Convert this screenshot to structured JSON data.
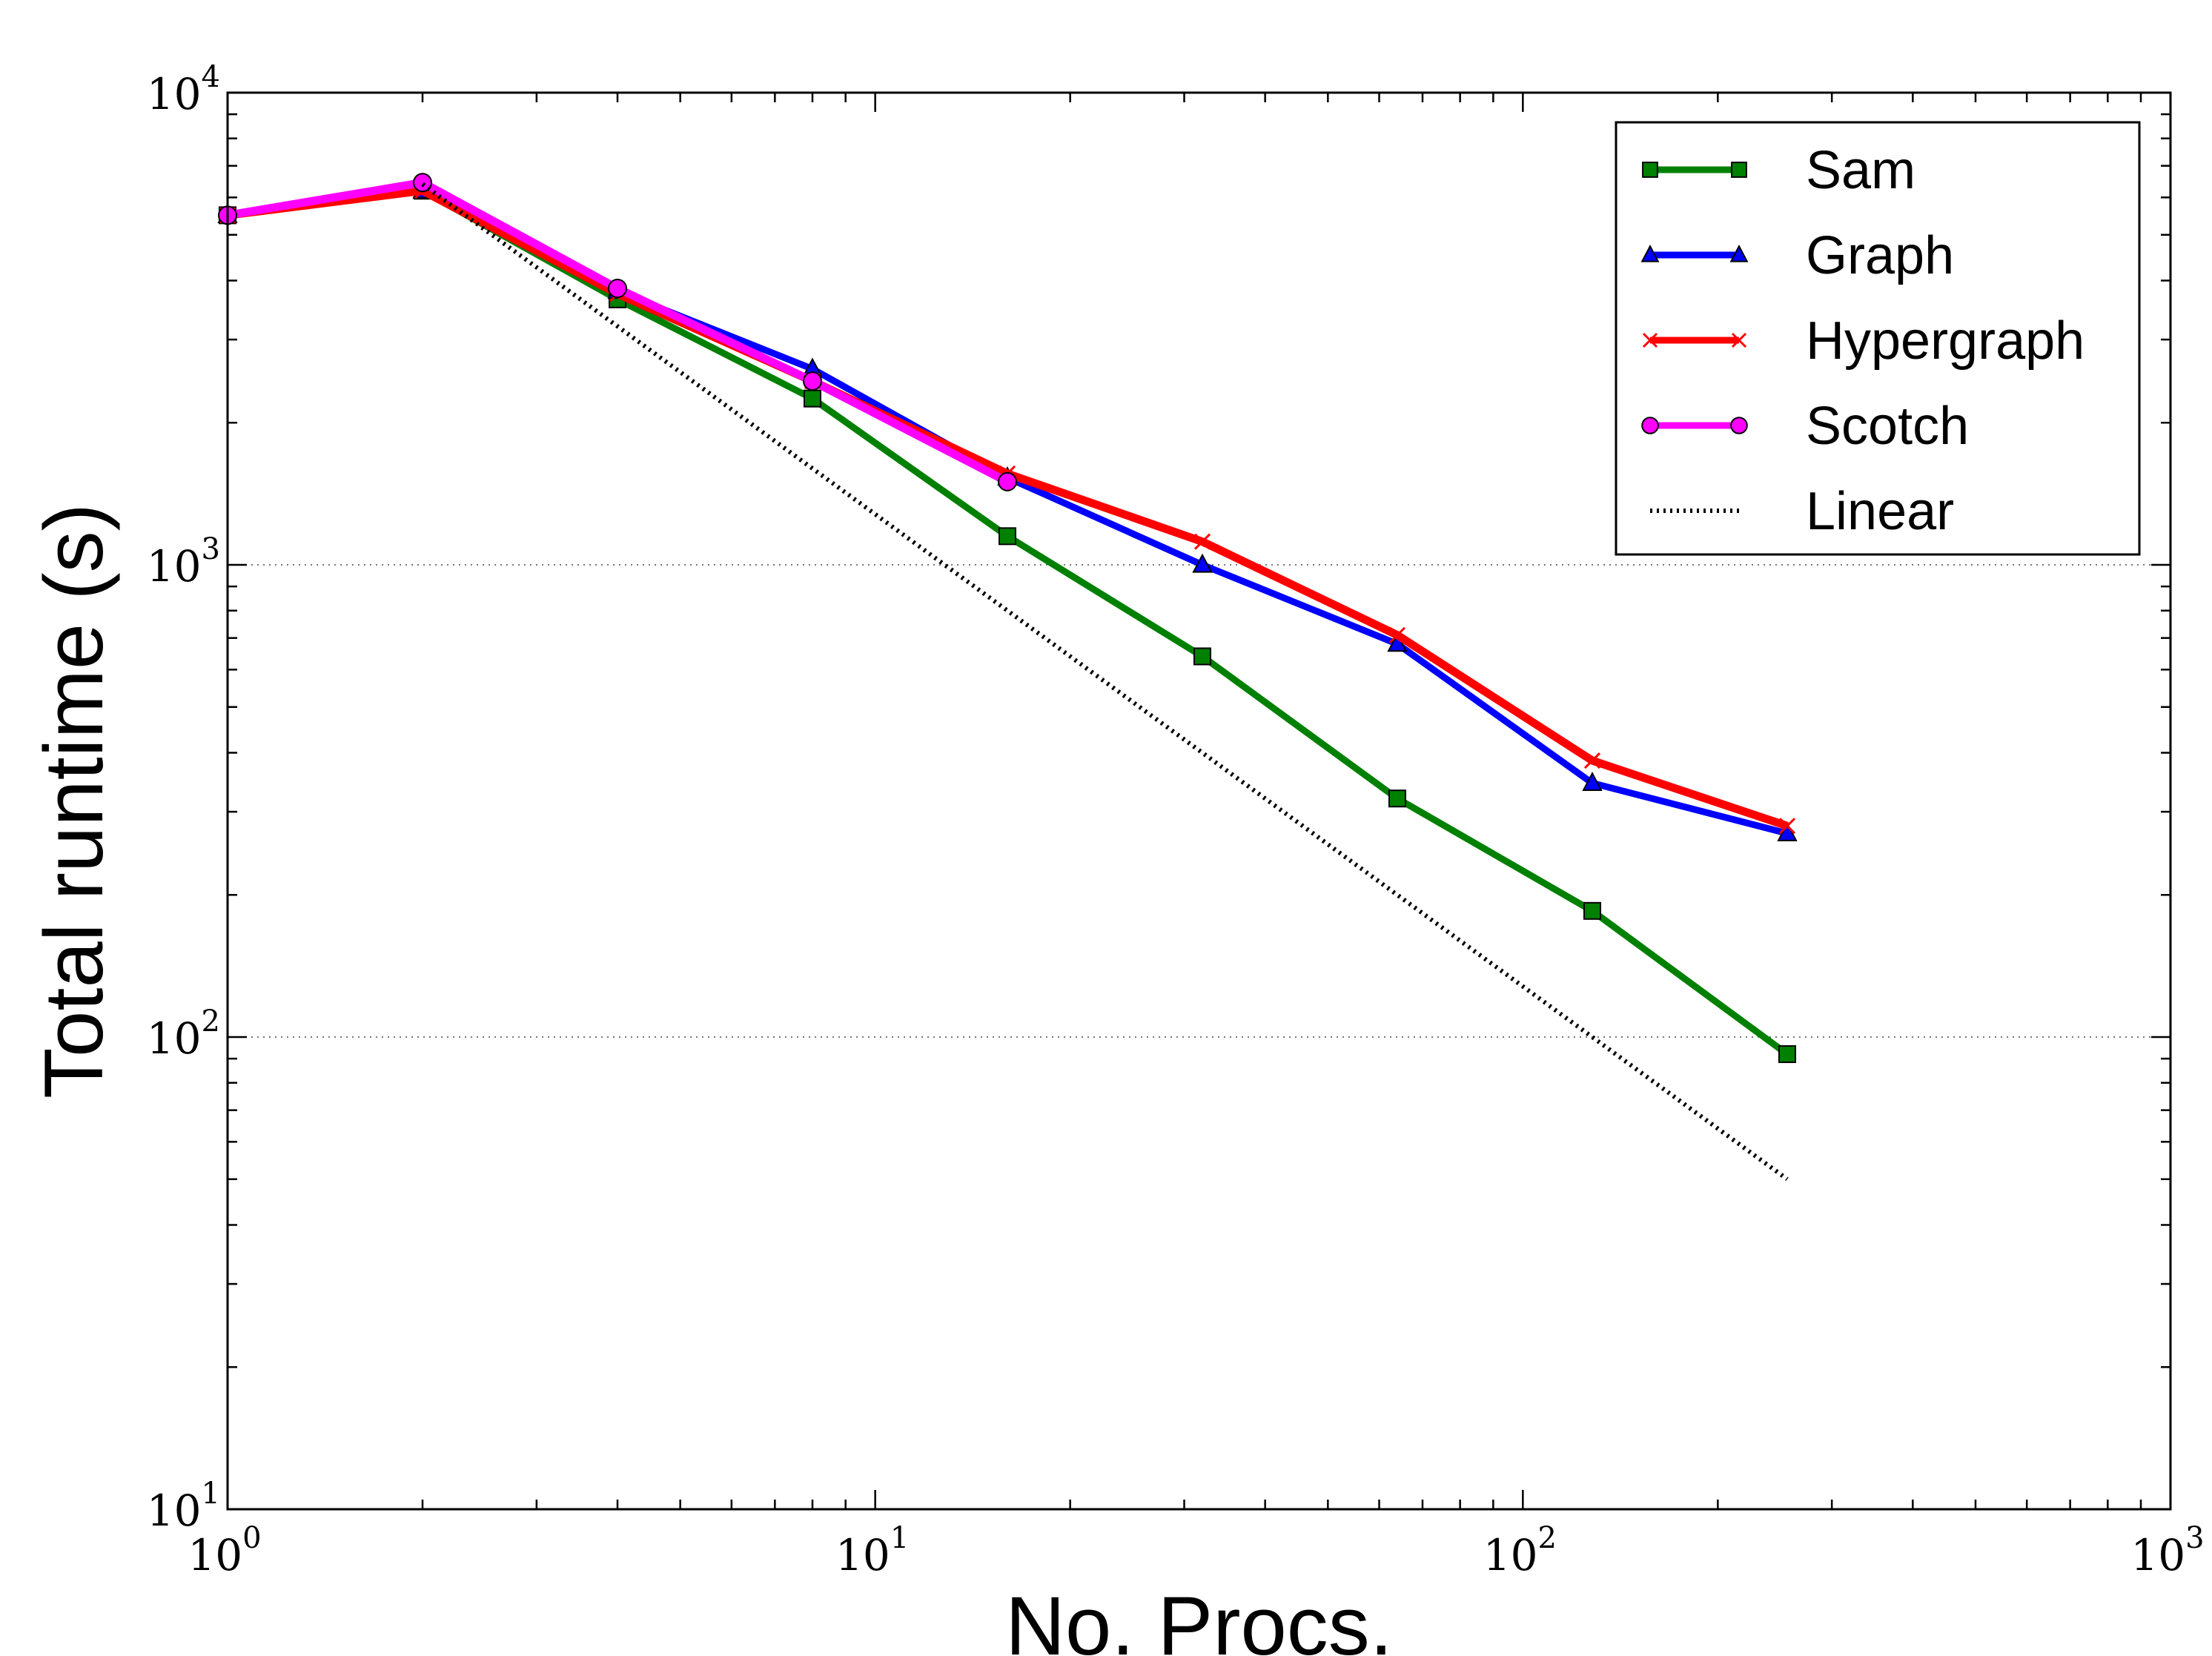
{
  "chart_data": {
    "type": "line",
    "xscale": "log",
    "yscale": "log",
    "xlabel": "No. Procs.",
    "ylabel": "Total runtime (s)",
    "xlim": [
      1,
      1000
    ],
    "ylim": [
      10,
      10000
    ],
    "xticks": [
      {
        "base": "10",
        "exp": "0"
      },
      {
        "base": "10",
        "exp": "1"
      },
      {
        "base": "10",
        "exp": "2"
      },
      {
        "base": "10",
        "exp": "3"
      }
    ],
    "yticks": [
      {
        "base": "10",
        "exp": "1"
      },
      {
        "base": "10",
        "exp": "2"
      },
      {
        "base": "10",
        "exp": "3"
      },
      {
        "base": "10",
        "exp": "4"
      }
    ],
    "grid": "horizontal dotted at major y ticks",
    "legend_position": "top-right",
    "series": [
      {
        "name": "Sam",
        "color": "#008000",
        "marker": "square",
        "x": [
          1,
          2,
          4,
          8,
          16,
          32,
          64,
          128,
          256
        ],
        "y": [
          5500,
          6200,
          3650,
          2250,
          1150,
          640,
          320,
          185,
          92
        ]
      },
      {
        "name": "Graph",
        "color": "#0000ff",
        "marker": "triangle",
        "x": [
          1,
          2,
          4,
          8,
          16,
          32,
          64,
          128,
          256
        ],
        "y": [
          5500,
          6200,
          3800,
          2600,
          1530,
          1000,
          680,
          345,
          270
        ]
      },
      {
        "name": "Hypergraph",
        "color": "#ff0000",
        "marker": "x",
        "x": [
          1,
          2,
          4,
          8,
          16,
          32,
          64,
          128,
          256
        ],
        "y": [
          5500,
          6200,
          3750,
          2450,
          1560,
          1120,
          710,
          385,
          280
        ]
      },
      {
        "name": "Scotch",
        "color": "#ff00ff",
        "marker": "circle",
        "x": [
          1,
          2,
          4,
          8,
          16
        ],
        "y": [
          5500,
          6450,
          3850,
          2450,
          1500
        ]
      },
      {
        "name": "Linear",
        "color": "#000000",
        "marker": "none",
        "linestyle": "dotted",
        "x": [
          2,
          256
        ],
        "y": [
          6400,
          50
        ]
      }
    ]
  }
}
